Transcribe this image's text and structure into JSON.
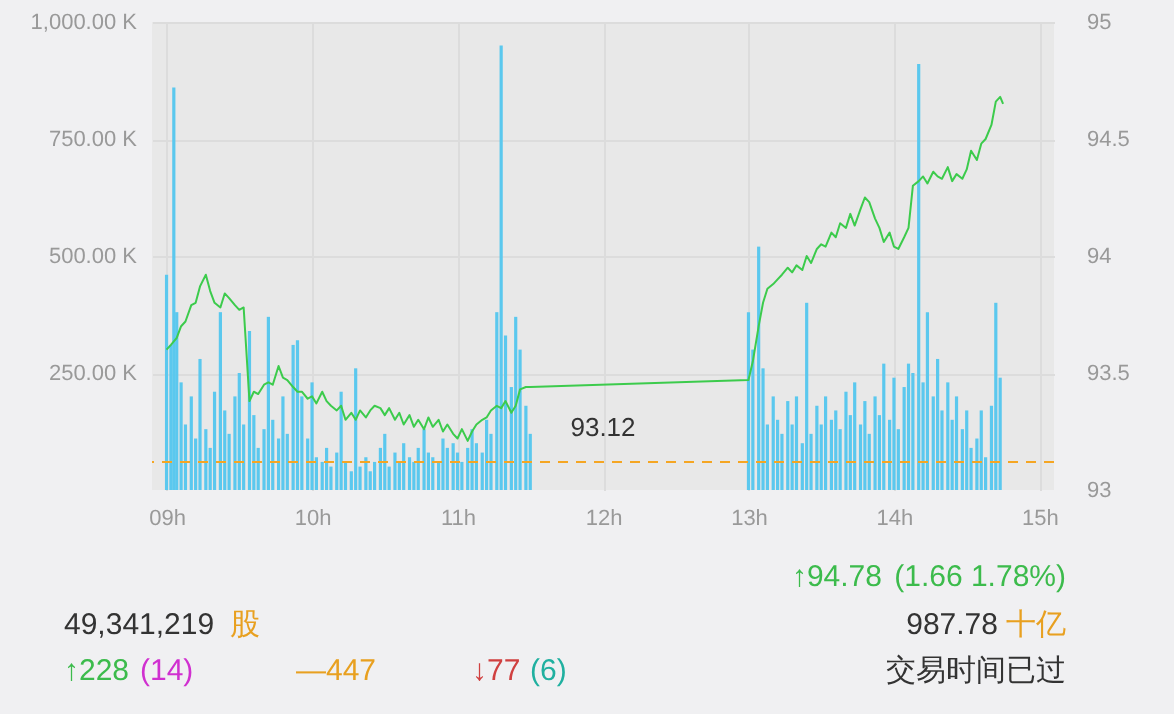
{
  "chart_data": {
    "type": "bar",
    "xlim": [
      8.9,
      15.1
    ],
    "xticks": [
      {
        "value": 9,
        "label": "09h"
      },
      {
        "value": 10,
        "label": "10h"
      },
      {
        "value": 11,
        "label": "11h"
      },
      {
        "value": 12,
        "label": "12h"
      },
      {
        "value": 13,
        "label": "13h"
      },
      {
        "value": 14,
        "label": "14h"
      },
      {
        "value": 15,
        "label": "15h"
      }
    ],
    "ylim": [
      0,
      1000
    ],
    "yticks": [
      {
        "value": 250,
        "label": "250.00 K"
      },
      {
        "value": 500,
        "label": "500.00 K"
      },
      {
        "value": 750,
        "label": "750.00 K"
      },
      {
        "value": 1000,
        "label": "1,000.00 K"
      }
    ],
    "y2lim": [
      93,
      95
    ],
    "y2ticks": [
      93,
      93.5,
      94,
      94.5,
      95
    ],
    "grid": true,
    "series": [
      {
        "color": "#5bc8ee",
        "x": [
          9.0,
          9.03,
          9.05,
          9.07,
          9.1,
          9.13,
          9.17,
          9.2,
          9.23,
          9.27,
          9.3,
          9.33,
          9.37,
          9.4,
          9.43,
          9.47,
          9.5,
          9.53,
          9.57,
          9.6,
          9.63,
          9.67,
          9.7,
          9.73,
          9.77,
          9.8,
          9.83,
          9.87,
          9.9,
          9.93,
          9.97,
          10.0,
          10.03,
          10.07,
          10.1,
          10.13,
          10.17,
          10.2,
          10.23,
          10.27,
          10.3,
          10.33,
          10.37,
          10.4,
          10.43,
          10.47,
          10.5,
          10.53,
          10.57,
          10.6,
          10.63,
          10.67,
          10.7,
          10.73,
          10.77,
          10.8,
          10.83,
          10.87,
          10.9,
          10.93,
          10.97,
          11.0,
          11.03,
          11.07,
          11.1,
          11.13,
          11.17,
          11.2,
          11.23,
          11.27,
          11.3,
          11.33,
          11.37,
          11.4,
          11.43,
          11.47,
          11.5,
          13.0,
          13.03,
          13.07,
          13.1,
          13.13,
          13.17,
          13.2,
          13.23,
          13.27,
          13.3,
          13.33,
          13.37,
          13.4,
          13.43,
          13.47,
          13.5,
          13.53,
          13.57,
          13.6,
          13.63,
          13.67,
          13.7,
          13.73,
          13.77,
          13.8,
          13.83,
          13.87,
          13.9,
          13.93,
          13.97,
          14.0,
          14.03,
          14.07,
          14.1,
          14.13,
          14.17,
          14.2,
          14.23,
          14.27,
          14.3,
          14.33,
          14.37,
          14.4,
          14.43,
          14.47,
          14.5,
          14.53,
          14.57,
          14.6,
          14.63,
          14.67,
          14.7,
          14.73
        ],
        "values": [
          460,
          310,
          860,
          380,
          230,
          140,
          200,
          110,
          280,
          130,
          90,
          210,
          380,
          170,
          120,
          200,
          250,
          140,
          340,
          160,
          90,
          130,
          370,
          150,
          110,
          200,
          120,
          310,
          320,
          200,
          110,
          230,
          70,
          60,
          90,
          50,
          80,
          210,
          60,
          40,
          260,
          50,
          70,
          40,
          60,
          90,
          120,
          50,
          80,
          60,
          100,
          70,
          60,
          90,
          130,
          80,
          70,
          60,
          110,
          90,
          100,
          80,
          60,
          90,
          130,
          100,
          80,
          150,
          120,
          380,
          950,
          330,
          220,
          370,
          300,
          180,
          120,
          380,
          300,
          520,
          260,
          140,
          200,
          150,
          120,
          190,
          140,
          200,
          100,
          400,
          120,
          180,
          140,
          200,
          150,
          170,
          130,
          210,
          160,
          230,
          140,
          190,
          120,
          200,
          160,
          270,
          150,
          240,
          130,
          220,
          270,
          250,
          910,
          230,
          380,
          200,
          280,
          170,
          230,
          150,
          200,
          130,
          170,
          90,
          110,
          170,
          70,
          180,
          400,
          240
        ]
      },
      {
        "type": "line",
        "axis": "y2",
        "color": "#3ccb4c",
        "x": [
          9.0,
          9.03,
          9.07,
          9.1,
          9.13,
          9.17,
          9.2,
          9.23,
          9.27,
          9.3,
          9.33,
          9.37,
          9.4,
          9.43,
          9.47,
          9.5,
          9.53,
          9.57,
          9.6,
          9.63,
          9.67,
          9.7,
          9.73,
          9.77,
          9.8,
          9.83,
          9.87,
          9.9,
          9.93,
          9.97,
          10.0,
          10.03,
          10.07,
          10.1,
          10.13,
          10.17,
          10.2,
          10.23,
          10.27,
          10.3,
          10.33,
          10.37,
          10.4,
          10.43,
          10.47,
          10.5,
          10.53,
          10.57,
          10.6,
          10.63,
          10.67,
          10.7,
          10.73,
          10.77,
          10.8,
          10.83,
          10.87,
          10.9,
          10.93,
          10.97,
          11.0,
          11.03,
          11.07,
          11.1,
          11.13,
          11.17,
          11.2,
          11.23,
          11.27,
          11.3,
          11.33,
          11.37,
          11.4,
          11.43,
          11.47,
          11.5,
          13.0,
          13.03,
          13.07,
          13.1,
          13.13,
          13.17,
          13.2,
          13.23,
          13.27,
          13.3,
          13.33,
          13.37,
          13.4,
          13.43,
          13.47,
          13.5,
          13.53,
          13.57,
          13.6,
          13.63,
          13.67,
          13.7,
          13.73,
          13.77,
          13.8,
          13.83,
          13.87,
          13.9,
          13.93,
          13.97,
          14.0,
          14.03,
          14.07,
          14.1,
          14.13,
          14.17,
          14.2,
          14.23,
          14.27,
          14.3,
          14.33,
          14.37,
          14.4,
          14.43,
          14.47,
          14.5,
          14.53,
          14.57,
          14.6,
          14.63,
          14.67,
          14.7,
          14.73,
          14.75
        ],
        "values": [
          93.6,
          93.62,
          93.65,
          93.7,
          93.72,
          93.79,
          93.8,
          93.87,
          93.92,
          93.85,
          93.8,
          93.78,
          93.84,
          93.82,
          93.79,
          93.77,
          93.78,
          93.38,
          93.42,
          93.41,
          93.45,
          93.46,
          93.45,
          93.53,
          93.48,
          93.47,
          93.44,
          93.42,
          93.42,
          93.39,
          93.4,
          93.37,
          93.42,
          93.38,
          93.36,
          93.34,
          93.36,
          93.3,
          93.33,
          93.3,
          93.34,
          93.31,
          93.34,
          93.36,
          93.35,
          93.32,
          93.35,
          93.3,
          93.33,
          93.28,
          93.32,
          93.27,
          93.3,
          93.26,
          93.31,
          93.27,
          93.3,
          93.25,
          93.28,
          93.24,
          93.22,
          93.26,
          93.21,
          93.25,
          93.28,
          93.3,
          93.31,
          93.34,
          93.36,
          93.35,
          93.38,
          93.33,
          93.36,
          93.43,
          93.44,
          93.44,
          93.47,
          93.55,
          93.7,
          93.8,
          93.86,
          93.88,
          93.9,
          93.92,
          93.95,
          93.93,
          93.96,
          93.94,
          94.0,
          93.97,
          94.03,
          94.05,
          94.04,
          94.1,
          94.08,
          94.14,
          94.12,
          94.18,
          94.13,
          94.2,
          94.25,
          94.23,
          94.16,
          94.12,
          94.06,
          94.1,
          94.04,
          94.03,
          94.08,
          94.12,
          94.3,
          94.32,
          94.34,
          94.31,
          94.36,
          94.34,
          94.33,
          94.38,
          94.32,
          94.35,
          94.33,
          94.37,
          94.45,
          94.41,
          94.48,
          94.5,
          94.56,
          94.66,
          94.68,
          94.65
        ]
      }
    ],
    "ref_lines": [
      {
        "axis": "y2",
        "value": 93.12,
        "label": "93.12",
        "color": "#f5a623",
        "line_style": "dashed"
      }
    ],
    "annotations": [
      "49,341,219",
      "股",
      "↑94.78",
      "(1.66  1.78%)",
      "987.78",
      "十亿",
      "↑228",
      "(14)",
      "—447",
      "↓77",
      "(6)",
      "交易时间已过"
    ]
  }
}
